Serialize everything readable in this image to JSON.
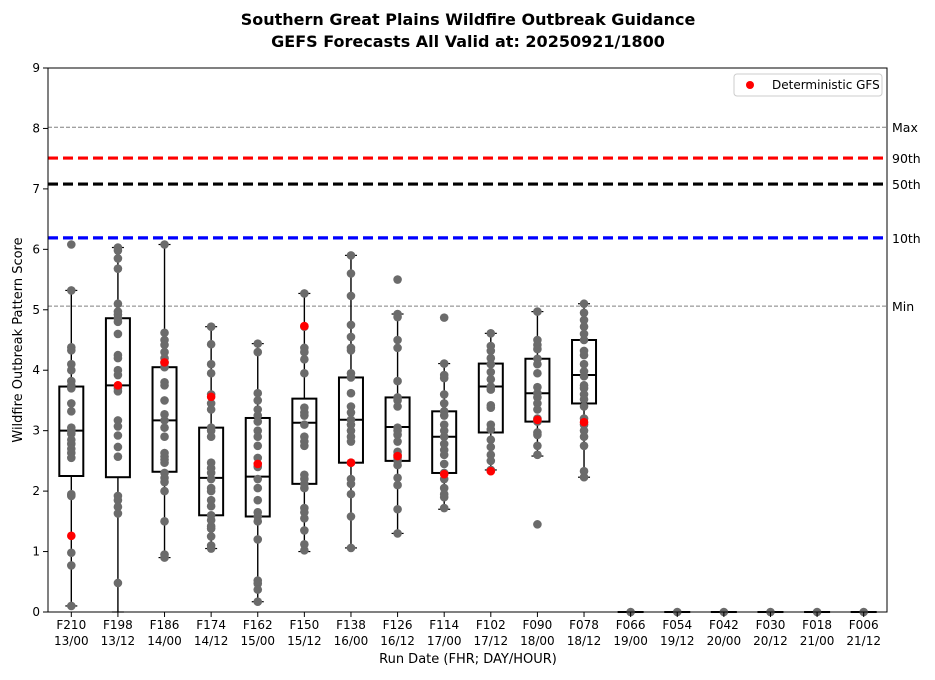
{
  "chart_data": {
    "type": "box",
    "title": "Southern Great Plains Wildfire Outbreak Guidance",
    "subtitle": "GEFS Forecasts All Valid at: 20250921/1800",
    "xlabel": "Run Date (FHR; DAY/HOUR)",
    "ylabel": "Wildfire Outbreak Pattern Score",
    "ylim": [
      0,
      9
    ],
    "yticks": [
      "0",
      "1",
      "2",
      "3",
      "4",
      "5",
      "6",
      "7",
      "8",
      "9"
    ],
    "categories": [
      {
        "fhr": "F210",
        "dayhour": "13/00"
      },
      {
        "fhr": "F198",
        "dayhour": "13/12"
      },
      {
        "fhr": "F186",
        "dayhour": "14/00"
      },
      {
        "fhr": "F174",
        "dayhour": "14/12"
      },
      {
        "fhr": "F162",
        "dayhour": "15/00"
      },
      {
        "fhr": "F150",
        "dayhour": "15/12"
      },
      {
        "fhr": "F138",
        "dayhour": "16/00"
      },
      {
        "fhr": "F126",
        "dayhour": "16/12"
      },
      {
        "fhr": "F114",
        "dayhour": "17/00"
      },
      {
        "fhr": "F102",
        "dayhour": "17/12"
      },
      {
        "fhr": "F090",
        "dayhour": "18/00"
      },
      {
        "fhr": "F078",
        "dayhour": "18/12"
      },
      {
        "fhr": "F066",
        "dayhour": "19/00"
      },
      {
        "fhr": "F054",
        "dayhour": "19/12"
      },
      {
        "fhr": "F042",
        "dayhour": "20/00"
      },
      {
        "fhr": "F030",
        "dayhour": "20/12"
      },
      {
        "fhr": "F018",
        "dayhour": "21/00"
      },
      {
        "fhr": "F006",
        "dayhour": "21/12"
      }
    ],
    "boxes": [
      {
        "whislo": 0.1,
        "q1": 2.25,
        "med": 3.0,
        "q3": 3.73,
        "whishi": 5.32
      },
      {
        "whislo": 0.0,
        "q1": 2.23,
        "med": 3.75,
        "q3": 4.86,
        "whishi": 6.03
      },
      {
        "whislo": 0.9,
        "q1": 2.32,
        "med": 3.17,
        "q3": 4.05,
        "whishi": 6.08
      },
      {
        "whislo": 1.05,
        "q1": 1.6,
        "med": 2.22,
        "q3": 3.05,
        "whishi": 4.72
      },
      {
        "whislo": 0.17,
        "q1": 1.58,
        "med": 2.24,
        "q3": 3.21,
        "whishi": 4.44
      },
      {
        "whislo": 1.0,
        "q1": 2.12,
        "med": 3.13,
        "q3": 3.53,
        "whishi": 5.27
      },
      {
        "whislo": 1.06,
        "q1": 2.47,
        "med": 3.18,
        "q3": 3.88,
        "whishi": 5.9
      },
      {
        "whislo": 1.3,
        "q1": 2.5,
        "med": 3.06,
        "q3": 3.55,
        "whishi": 4.93
      },
      {
        "whislo": 1.7,
        "q1": 2.3,
        "med": 2.9,
        "q3": 3.32,
        "whishi": 4.11
      },
      {
        "whislo": 2.35,
        "q1": 2.97,
        "med": 3.73,
        "q3": 4.11,
        "whishi": 4.61
      },
      {
        "whislo": 2.58,
        "q1": 3.15,
        "med": 3.62,
        "q3": 4.19,
        "whishi": 4.97
      },
      {
        "whislo": 2.23,
        "q1": 3.45,
        "med": 3.92,
        "q3": 4.5,
        "whishi": 5.1
      },
      {
        "whislo": 0.0,
        "q1": 0.0,
        "med": 0.0,
        "q3": 0.0,
        "whishi": 0.0
      },
      {
        "whislo": 0.0,
        "q1": 0.0,
        "med": 0.0,
        "q3": 0.0,
        "whishi": 0.0
      },
      {
        "whislo": 0.0,
        "q1": 0.0,
        "med": 0.0,
        "q3": 0.0,
        "whishi": 0.0
      },
      {
        "whislo": 0.0,
        "q1": 0.0,
        "med": 0.0,
        "q3": 0.0,
        "whishi": 0.0
      },
      {
        "whislo": 0.0,
        "q1": 0.0,
        "med": 0.0,
        "q3": 0.0,
        "whishi": 0.0
      },
      {
        "whislo": 0.0,
        "q1": 0.0,
        "med": 0.0,
        "q3": 0.0,
        "whishi": 0.0
      }
    ],
    "members": [
      [
        6.08,
        5.32,
        4.38,
        4.33,
        4.1,
        4.0,
        3.82,
        3.75,
        3.7,
        3.45,
        3.32,
        3.05,
        3.0,
        2.95,
        2.85,
        2.78,
        2.7,
        2.63,
        2.55,
        1.95,
        1.92,
        0.98,
        0.77,
        0.1
      ],
      [
        6.03,
        5.98,
        5.85,
        5.68,
        5.1,
        4.97,
        4.92,
        4.86,
        4.8,
        4.6,
        4.25,
        4.2,
        4.0,
        3.92,
        3.7,
        3.65,
        3.17,
        3.07,
        2.92,
        2.73,
        2.57,
        1.92,
        1.85,
        1.74,
        1.63,
        0.48
      ],
      [
        6.08,
        4.62,
        4.5,
        4.42,
        4.3,
        4.2,
        4.12,
        4.05,
        3.8,
        3.75,
        3.5,
        3.27,
        3.17,
        3.05,
        2.9,
        2.63,
        2.57,
        2.52,
        2.47,
        2.3,
        2.22,
        2.15,
        2.0,
        1.5,
        0.95,
        0.9
      ],
      [
        4.72,
        4.43,
        4.1,
        3.95,
        3.6,
        3.45,
        3.35,
        3.05,
        3.0,
        2.9,
        2.47,
        2.38,
        2.3,
        2.2,
        2.05,
        2.0,
        1.85,
        1.75,
        1.6,
        1.52,
        1.42,
        1.38,
        1.25,
        1.1,
        1.05
      ],
      [
        4.44,
        4.3,
        3.62,
        3.5,
        3.35,
        3.25,
        3.15,
        3.0,
        2.9,
        2.75,
        2.55,
        2.4,
        2.2,
        2.05,
        1.85,
        1.65,
        1.58,
        1.5,
        1.2,
        0.52,
        0.47,
        0.37,
        0.17
      ],
      [
        5.27,
        4.72,
        4.37,
        4.3,
        4.18,
        3.95,
        3.38,
        3.3,
        3.25,
        3.1,
        2.9,
        2.82,
        2.75,
        2.27,
        2.2,
        2.12,
        2.05,
        1.72,
        1.65,
        1.55,
        1.35,
        1.12,
        1.02
      ],
      [
        5.9,
        5.6,
        5.23,
        4.75,
        4.55,
        4.37,
        4.33,
        3.95,
        3.88,
        3.62,
        3.4,
        3.3,
        3.18,
        3.1,
        3.0,
        2.9,
        2.82,
        2.47,
        2.2,
        2.12,
        1.95,
        1.58,
        1.06
      ],
      [
        5.5,
        4.93,
        4.88,
        4.5,
        4.37,
        3.82,
        3.55,
        3.5,
        3.4,
        3.05,
        3.0,
        2.93,
        2.82,
        2.65,
        2.6,
        2.55,
        2.5,
        2.43,
        2.22,
        2.1,
        1.7,
        1.3
      ],
      [
        4.87,
        4.11,
        3.92,
        3.87,
        3.6,
        3.45,
        3.32,
        3.25,
        3.1,
        3.0,
        2.9,
        2.78,
        2.68,
        2.6,
        2.45,
        2.3,
        2.2,
        2.05,
        1.95,
        1.9,
        1.72
      ],
      [
        4.61,
        4.4,
        4.32,
        4.2,
        4.1,
        3.97,
        3.85,
        3.73,
        3.68,
        3.42,
        3.38,
        3.1,
        3.02,
        2.85,
        2.73,
        2.6,
        2.5,
        2.35
      ],
      [
        4.97,
        4.5,
        4.42,
        4.35,
        4.19,
        4.1,
        3.95,
        3.72,
        3.62,
        3.55,
        3.45,
        3.35,
        3.2,
        3.15,
        2.97,
        2.93,
        2.75,
        2.6,
        1.45
      ],
      [
        5.1,
        4.95,
        4.83,
        4.72,
        4.6,
        4.5,
        4.32,
        4.25,
        4.1,
        3.98,
        3.9,
        3.75,
        3.7,
        3.6,
        3.52,
        3.4,
        3.2,
        3.1,
        3.0,
        2.9,
        2.75,
        2.33,
        2.23
      ],
      [
        0.0
      ],
      [
        0.0
      ],
      [
        0.0
      ],
      [
        0.0
      ],
      [
        0.0
      ],
      [
        0.0
      ]
    ],
    "deterministic": [
      1.26,
      3.75,
      4.13,
      3.56,
      2.45,
      4.73,
      2.47,
      2.58,
      2.28,
      2.33,
      3.18,
      3.14,
      null,
      null,
      null,
      null,
      null,
      null
    ],
    "reference_lines": [
      {
        "label": "Max",
        "value": 8.02,
        "color": "#808080",
        "style": "dashed-thin"
      },
      {
        "label": "90th",
        "value": 7.51,
        "color": "#ff0000",
        "style": "dashed-thick"
      },
      {
        "label": "50th",
        "value": 7.08,
        "color": "#000000",
        "style": "dashed-thick"
      },
      {
        "label": "10th",
        "value": 6.19,
        "color": "#0000ff",
        "style": "dashed-thick"
      },
      {
        "label": "Min",
        "value": 5.06,
        "color": "#808080",
        "style": "dashed-thin"
      }
    ],
    "legend": {
      "entries": [
        {
          "name": "Deterministic GFS",
          "color": "#ff0000",
          "marker": "circle"
        }
      ],
      "placement": "top-right"
    },
    "colors": {
      "members": "#6b6b6b",
      "deterministic": "#ff0000",
      "box": "#000000"
    },
    "grid": false
  }
}
